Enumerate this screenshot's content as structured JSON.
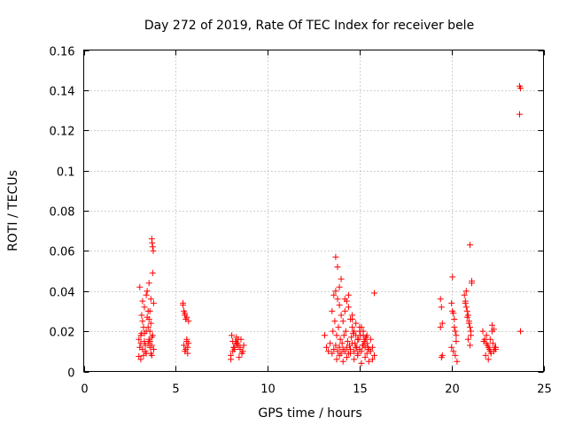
{
  "chart_data": {
    "type": "scatter",
    "title": "Day 272 of 2019, Rate Of TEC Index for receiver bele",
    "xlabel": "GPS time / hours",
    "ylabel": "ROTI / TECUs",
    "xlim": [
      0,
      25
    ],
    "ylim": [
      0,
      0.16
    ],
    "xticks": [
      0,
      5,
      10,
      15,
      20,
      25
    ],
    "yticks": [
      0,
      0.02,
      0.04,
      0.06,
      0.08,
      0.1,
      0.12,
      0.14,
      0.16
    ],
    "xtick_labels": [
      "0",
      "5",
      "10",
      "15",
      "20",
      "25"
    ],
    "ytick_labels": [
      "0",
      "0.02",
      "0.04",
      "0.06",
      "0.08",
      "0.1",
      "0.12",
      "0.14",
      "0.16"
    ],
    "grid": true,
    "marker": "+",
    "color": "#ff0000",
    "series": [
      {
        "name": "ROTI",
        "x": [
          3.0,
          3.05,
          3.1,
          3.15,
          3.2,
          3.25,
          3.3,
          3.35,
          3.4,
          3.45,
          3.5,
          3.55,
          3.6,
          3.65,
          3.7,
          3.75,
          3.8,
          3.1,
          3.2,
          3.3,
          3.4,
          3.5,
          3.6,
          3.7,
          3.05,
          3.25,
          3.45,
          3.65,
          3.15,
          3.35,
          3.55,
          3.75,
          3.7,
          3.72,
          3.75,
          3.78,
          3.6,
          3.65,
          3.8,
          3.0,
          3.2,
          3.4,
          3.6,
          3.5,
          3.3,
          3.1,
          3.7,
          3.55,
          5.4,
          5.45,
          5.5,
          5.55,
          5.6,
          5.65,
          5.7,
          5.5,
          5.6,
          5.45,
          5.55,
          5.65,
          5.4,
          5.5,
          5.6,
          5.7,
          8.0,
          8.1,
          8.2,
          8.3,
          8.4,
          8.5,
          8.6,
          8.7,
          8.05,
          8.25,
          8.45,
          8.65,
          8.15,
          8.35,
          8.55,
          8.0,
          8.2,
          8.4,
          8.6,
          8.3,
          8.1,
          8.5,
          13.1,
          13.2,
          13.3,
          13.4,
          13.5,
          13.6,
          13.7,
          13.8,
          13.9,
          14.0,
          14.1,
          14.2,
          14.3,
          14.4,
          14.5,
          14.6,
          14.7,
          14.8,
          14.9,
          15.0,
          15.1,
          15.2,
          15.3,
          15.4,
          15.5,
          15.6,
          15.7,
          15.8,
          13.5,
          13.6,
          13.7,
          13.8,
          13.9,
          14.0,
          14.1,
          14.2,
          14.3,
          14.4,
          14.5,
          14.6,
          14.7,
          14.8,
          14.9,
          15.0,
          15.1,
          15.2,
          15.3,
          15.4,
          13.55,
          13.65,
          13.75,
          13.85,
          13.95,
          14.05,
          14.15,
          14.25,
          14.35,
          14.45,
          14.55,
          14.65,
          14.75,
          14.85,
          14.95,
          15.05,
          15.15,
          15.25,
          15.35,
          15.45,
          13.7,
          13.8,
          14.0,
          14.2,
          14.4,
          14.6,
          14.8,
          15.0,
          15.2,
          15.4,
          15.6,
          13.75,
          13.9,
          14.1,
          14.3,
          14.5,
          14.7,
          14.9,
          15.1,
          15.3,
          15.5,
          15.7,
          13.9,
          14.6,
          15.8,
          19.4,
          19.45,
          19.5,
          19.4,
          19.5,
          19.45,
          20.0,
          20.05,
          20.1,
          20.15,
          20.2,
          20.25,
          20.0,
          20.1,
          20.2,
          20.3,
          20.05,
          20.15,
          20.25,
          20.7,
          20.75,
          20.8,
          20.85,
          20.9,
          20.95,
          21.0,
          21.05,
          21.1,
          20.8,
          20.9,
          21.0,
          21.1,
          20.75,
          20.85,
          20.95,
          21.05,
          21.0,
          21.7,
          21.8,
          21.9,
          22.0,
          22.1,
          22.2,
          22.3,
          22.4,
          21.75,
          21.85,
          21.95,
          22.05,
          22.15,
          22.25,
          22.35,
          21.9,
          22.1,
          22.3,
          22.0,
          22.2,
          22.4,
          23.7,
          23.75,
          23.7,
          23.75
        ],
        "y": [
          0.0075,
          0.012,
          0.018,
          0.028,
          0.035,
          0.022,
          0.015,
          0.01,
          0.02,
          0.04,
          0.03,
          0.016,
          0.012,
          0.009,
          0.013,
          0.018,
          0.011,
          0.006,
          0.025,
          0.032,
          0.038,
          0.014,
          0.02,
          0.017,
          0.042,
          0.008,
          0.027,
          0.036,
          0.019,
          0.013,
          0.044,
          0.049,
          0.066,
          0.064,
          0.062,
          0.06,
          0.03,
          0.024,
          0.034,
          0.016,
          0.011,
          0.009,
          0.015,
          0.022,
          0.019,
          0.014,
          0.008,
          0.026,
          0.034,
          0.03,
          0.028,
          0.026,
          0.015,
          0.012,
          0.014,
          0.01,
          0.016,
          0.013,
          0.011,
          0.009,
          0.033,
          0.029,
          0.027,
          0.025,
          0.008,
          0.01,
          0.012,
          0.014,
          0.016,
          0.011,
          0.009,
          0.013,
          0.018,
          0.015,
          0.007,
          0.01,
          0.012,
          0.014,
          0.016,
          0.006,
          0.011,
          0.013,
          0.009,
          0.017,
          0.015,
          0.012,
          0.018,
          0.012,
          0.01,
          0.014,
          0.009,
          0.011,
          0.013,
          0.01,
          0.012,
          0.009,
          0.011,
          0.01,
          0.012,
          0.009,
          0.011,
          0.014,
          0.01,
          0.012,
          0.009,
          0.011,
          0.01,
          0.013,
          0.012,
          0.009,
          0.011,
          0.01,
          0.012,
          0.008,
          0.03,
          0.038,
          0.04,
          0.036,
          0.033,
          0.028,
          0.025,
          0.03,
          0.035,
          0.038,
          0.026,
          0.022,
          0.02,
          0.018,
          0.016,
          0.02,
          0.022,
          0.018,
          0.016,
          0.014,
          0.02,
          0.025,
          0.018,
          0.022,
          0.016,
          0.014,
          0.018,
          0.02,
          0.015,
          0.013,
          0.017,
          0.019,
          0.014,
          0.012,
          0.016,
          0.018,
          0.013,
          0.015,
          0.017,
          0.012,
          0.057,
          0.052,
          0.046,
          0.036,
          0.032,
          0.028,
          0.024,
          0.022,
          0.02,
          0.018,
          0.016,
          0.006,
          0.008,
          0.005,
          0.007,
          0.009,
          0.006,
          0.008,
          0.004,
          0.007,
          0.005,
          0.006,
          0.042,
          0.026,
          0.039,
          0.036,
          0.032,
          0.024,
          0.022,
          0.008,
          0.007,
          0.034,
          0.03,
          0.029,
          0.026,
          0.02,
          0.015,
          0.012,
          0.01,
          0.008,
          0.005,
          0.047,
          0.022,
          0.018,
          0.038,
          0.035,
          0.032,
          0.03,
          0.028,
          0.025,
          0.022,
          0.018,
          0.045,
          0.04,
          0.016,
          0.013,
          0.044,
          0.034,
          0.027,
          0.024,
          0.02,
          0.063,
          0.02,
          0.016,
          0.014,
          0.012,
          0.01,
          0.023,
          0.021,
          0.012,
          0.015,
          0.008,
          0.013,
          0.011,
          0.009,
          0.014,
          0.012,
          0.018,
          0.016,
          0.01,
          0.006,
          0.02,
          0.011,
          0.142,
          0.141,
          0.128,
          0.02
        ]
      }
    ]
  }
}
